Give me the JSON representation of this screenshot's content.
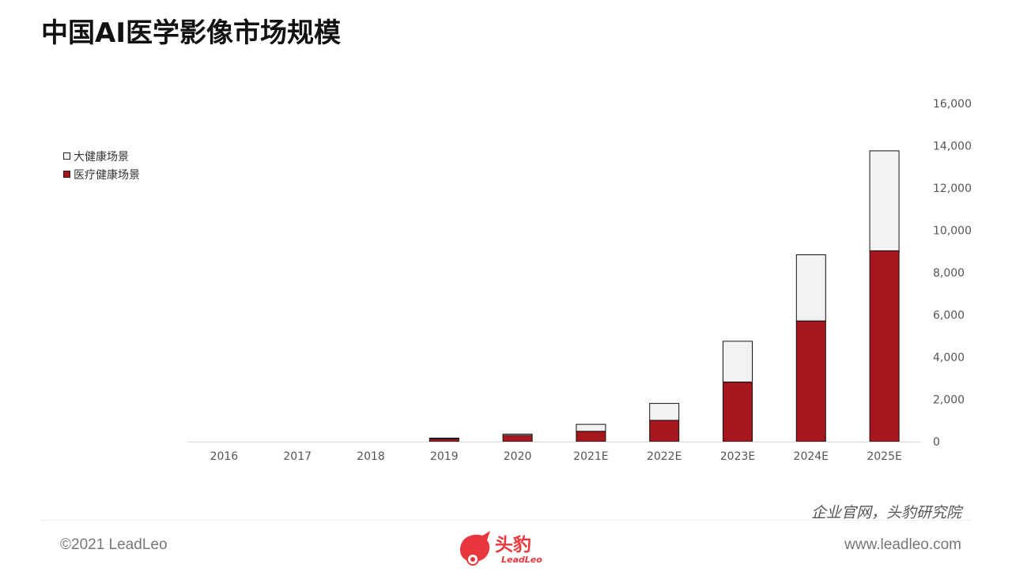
{
  "page": {
    "title": "中国AI医学影像市场规模",
    "source": "企业官网，头豹研究院",
    "copyright": "©2021 LeadLeo",
    "website": "www.leadleo.com",
    "logo_text_cn": "头豹",
    "logo_text_en": "LeadLeo",
    "accent_color": "#a5161d"
  },
  "chart_data": {
    "type": "bar",
    "stacked": true,
    "categories": [
      "2016",
      "2017",
      "2018",
      "2019",
      "2020",
      "2021E",
      "2022E",
      "2023E",
      "2024E",
      "2025E"
    ],
    "series": [
      {
        "name": "医疗健康场景",
        "color": "#a5161d",
        "values": [
          0,
          0,
          0,
          130,
          300,
          490,
          1010,
          2820,
          5710,
          9030
        ]
      },
      {
        "name": "大健康场景",
        "color": "#f2f2f2",
        "values": [
          0,
          0,
          0,
          40,
          60,
          330,
          800,
          1930,
          3130,
          4730
        ]
      }
    ],
    "ylim": [
      0,
      16000
    ],
    "yticks": [
      "0",
      "2,000",
      "4,000",
      "6,000",
      "8,000",
      "10,000",
      "12,000",
      "14,000",
      "16,000"
    ],
    "yaxis_position": "right",
    "grid": false,
    "legend_position": "top-left",
    "title": "",
    "xlabel": "",
    "ylabel": ""
  }
}
